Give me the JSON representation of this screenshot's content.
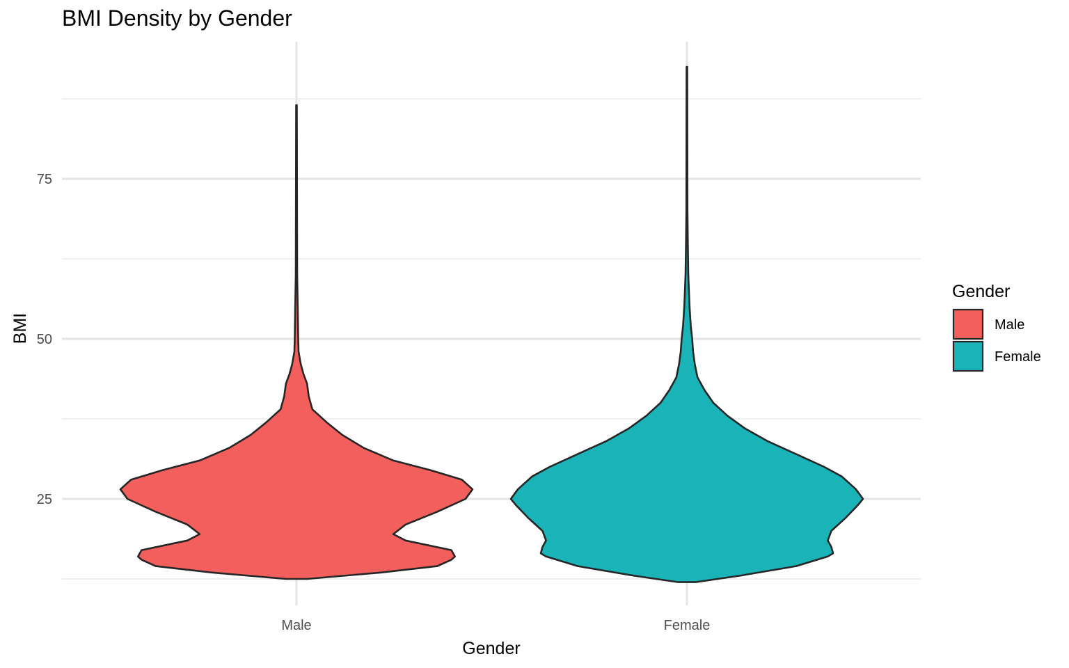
{
  "chart_data": {
    "type": "violin",
    "title": "BMI Density by Gender",
    "xlabel": "Gender",
    "ylabel": "BMI",
    "categories": [
      "Male",
      "Female"
    ],
    "ylim": [
      10.5,
      94.5
    ],
    "yticks": [
      25,
      50,
      75
    ],
    "yminor": [
      12.5,
      37.5,
      62.5,
      87.5
    ],
    "grid": true,
    "legend": {
      "title": "Gender",
      "position": "right",
      "entries": [
        {
          "label": "Male",
          "color": "#F25F5C"
        },
        {
          "label": "Female",
          "color": "#19B3B8"
        }
      ]
    },
    "series": [
      {
        "name": "Male",
        "color": "#F25F5C",
        "min": 12.5,
        "max": 86.5,
        "density_profile": [
          [
            12.5,
            0.06
          ],
          [
            13.5,
            0.48
          ],
          [
            14.5,
            0.8
          ],
          [
            15.5,
            0.88
          ],
          [
            16.0,
            0.9
          ],
          [
            17.0,
            0.88
          ],
          [
            18.5,
            0.62
          ],
          [
            19.5,
            0.55
          ],
          [
            21.0,
            0.62
          ],
          [
            23.0,
            0.8
          ],
          [
            25.0,
            0.96
          ],
          [
            26.5,
            1.0
          ],
          [
            28.0,
            0.94
          ],
          [
            29.5,
            0.76
          ],
          [
            31.0,
            0.55
          ],
          [
            33.0,
            0.38
          ],
          [
            35.0,
            0.26
          ],
          [
            37.0,
            0.17
          ],
          [
            39.0,
            0.09
          ],
          [
            41.0,
            0.07
          ],
          [
            43.0,
            0.06
          ],
          [
            44.5,
            0.04
          ],
          [
            46.0,
            0.025
          ],
          [
            48.0,
            0.012
          ],
          [
            50.0,
            0.01
          ],
          [
            55.0,
            0.007
          ],
          [
            60.0,
            0.004
          ],
          [
            70.0,
            0.003
          ],
          [
            86.5,
            0.002
          ]
        ]
      },
      {
        "name": "Female",
        "color": "#19B3B8",
        "min": 12.0,
        "max": 92.5,
        "density_profile": [
          [
            12.0,
            0.05
          ],
          [
            13.0,
            0.3
          ],
          [
            14.5,
            0.62
          ],
          [
            16.0,
            0.8
          ],
          [
            16.5,
            0.83
          ],
          [
            17.5,
            0.82
          ],
          [
            18.5,
            0.8
          ],
          [
            20.0,
            0.82
          ],
          [
            22.0,
            0.9
          ],
          [
            24.0,
            0.97
          ],
          [
            25.0,
            1.0
          ],
          [
            26.5,
            0.96
          ],
          [
            28.5,
            0.88
          ],
          [
            30.0,
            0.78
          ],
          [
            32.0,
            0.62
          ],
          [
            34.0,
            0.46
          ],
          [
            36.0,
            0.33
          ],
          [
            38.0,
            0.23
          ],
          [
            40.0,
            0.15
          ],
          [
            42.0,
            0.1
          ],
          [
            44.0,
            0.06
          ],
          [
            46.0,
            0.045
          ],
          [
            48.0,
            0.035
          ],
          [
            50.0,
            0.03
          ],
          [
            52.0,
            0.022
          ],
          [
            55.0,
            0.015
          ],
          [
            60.0,
            0.008
          ],
          [
            65.0,
            0.005
          ],
          [
            70.0,
            0.003
          ],
          [
            92.5,
            0.002
          ]
        ]
      }
    ]
  }
}
